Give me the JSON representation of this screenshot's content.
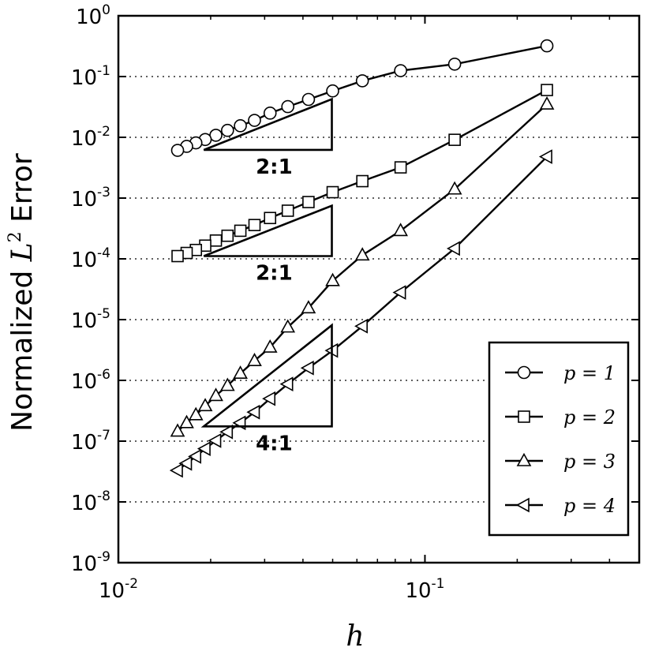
{
  "chart_data": {
    "type": "line",
    "xscale": "log",
    "yscale": "log",
    "xlim": [
      0.01,
      0.5
    ],
    "ylim": [
      1e-09,
      1
    ],
    "grid": "y-major-dotted",
    "xlabel": "h",
    "ylabel_prefix": "Normalized",
    "ylabel_var": "L",
    "ylabel_sup": "2",
    "ylabel_suffix": "Error",
    "x_ticks": [
      {
        "base": "10",
        "exp": "-2",
        "value": 0.01
      },
      {
        "base": "10",
        "exp": "-1",
        "value": 0.1
      }
    ],
    "y_ticks": [
      {
        "base": "10",
        "exp": "0",
        "value": 1
      },
      {
        "base": "10",
        "exp": "-1",
        "value": 0.1
      },
      {
        "base": "10",
        "exp": "-2",
        "value": 0.01
      },
      {
        "base": "10",
        "exp": "-3",
        "value": 0.001
      },
      {
        "base": "10",
        "exp": "-4",
        "value": 0.0001
      },
      {
        "base": "10",
        "exp": "-5",
        "value": 1e-05
      },
      {
        "base": "10",
        "exp": "-6",
        "value": 1e-06
      },
      {
        "base": "10",
        "exp": "-7",
        "value": 1e-07
      },
      {
        "base": "10",
        "exp": "-8",
        "value": 1e-08
      },
      {
        "base": "10",
        "exp": "-9",
        "value": 1e-09
      }
    ],
    "legend_position": "lower-right",
    "series": [
      {
        "name": "p = 1",
        "marker": "circle",
        "x": [
          0.25,
          0.125,
          0.0833,
          0.0625,
          0.05,
          0.0417,
          0.0357,
          0.03125,
          0.0278,
          0.025,
          0.0227,
          0.0208,
          0.0192,
          0.0179,
          0.0167,
          0.0156
        ],
        "y": [
          0.32,
          0.16,
          0.125,
          0.085,
          0.058,
          0.042,
          0.032,
          0.025,
          0.019,
          0.0155,
          0.013,
          0.0108,
          0.0092,
          0.0081,
          0.0071,
          0.0061
        ]
      },
      {
        "name": "p = 2",
        "marker": "square",
        "x": [
          0.25,
          0.125,
          0.0833,
          0.0625,
          0.05,
          0.0417,
          0.0357,
          0.03125,
          0.0278,
          0.025,
          0.0227,
          0.0208,
          0.0192,
          0.0179,
          0.0167,
          0.0156
        ],
        "y": [
          0.06,
          0.0091,
          0.0032,
          0.0019,
          0.00125,
          0.00086,
          0.00062,
          0.00047,
          0.00036,
          0.00029,
          0.00024,
          0.0002,
          0.000165,
          0.00014,
          0.000125,
          0.000111
        ]
      },
      {
        "name": "p = 3",
        "marker": "triangle-up",
        "x": [
          0.25,
          0.125,
          0.0833,
          0.0625,
          0.05,
          0.0417,
          0.0357,
          0.03125,
          0.0278,
          0.025,
          0.0227,
          0.0208,
          0.0192,
          0.0179,
          0.0167,
          0.0156
        ],
        "y": [
          0.035,
          0.0014,
          0.00029,
          0.000115,
          4.35e-05,
          1.55e-05,
          7.5e-06,
          3.5e-06,
          2.1e-06,
          1.3e-06,
          8.2e-07,
          5.6e-07,
          3.8e-07,
          2.7e-07,
          2e-07,
          1.45e-07
        ]
      },
      {
        "name": "p = 4",
        "marker": "triangle-left",
        "x": [
          0.25,
          0.125,
          0.0833,
          0.0625,
          0.05,
          0.0417,
          0.0357,
          0.03125,
          0.0278,
          0.025,
          0.0227,
          0.0208,
          0.0192,
          0.0179,
          0.0167,
          0.0156
        ],
        "y": [
          0.0048,
          0.000148,
          2.8e-05,
          7.8e-06,
          3.1e-06,
          1.6e-06,
          8.7e-07,
          5e-07,
          3e-07,
          2e-07,
          1.42e-07,
          1.02e-07,
          7.5e-08,
          5.6e-08,
          4.3e-08,
          3.3e-08
        ]
      }
    ],
    "slope_triangles": [
      {
        "label": "2:1",
        "x_left": 0.019,
        "x_right": 0.0497,
        "y_bottom": 0.0062,
        "y_top": 0.0425
      },
      {
        "label": "2:1",
        "x_left": 0.019,
        "x_right": 0.0497,
        "y_bottom": 0.000111,
        "y_top": 0.00075
      },
      {
        "label": "4:1",
        "x_left": 0.019,
        "x_right": 0.0497,
        "y_bottom": 1.75e-07,
        "y_top": 8.1e-06
      }
    ]
  }
}
